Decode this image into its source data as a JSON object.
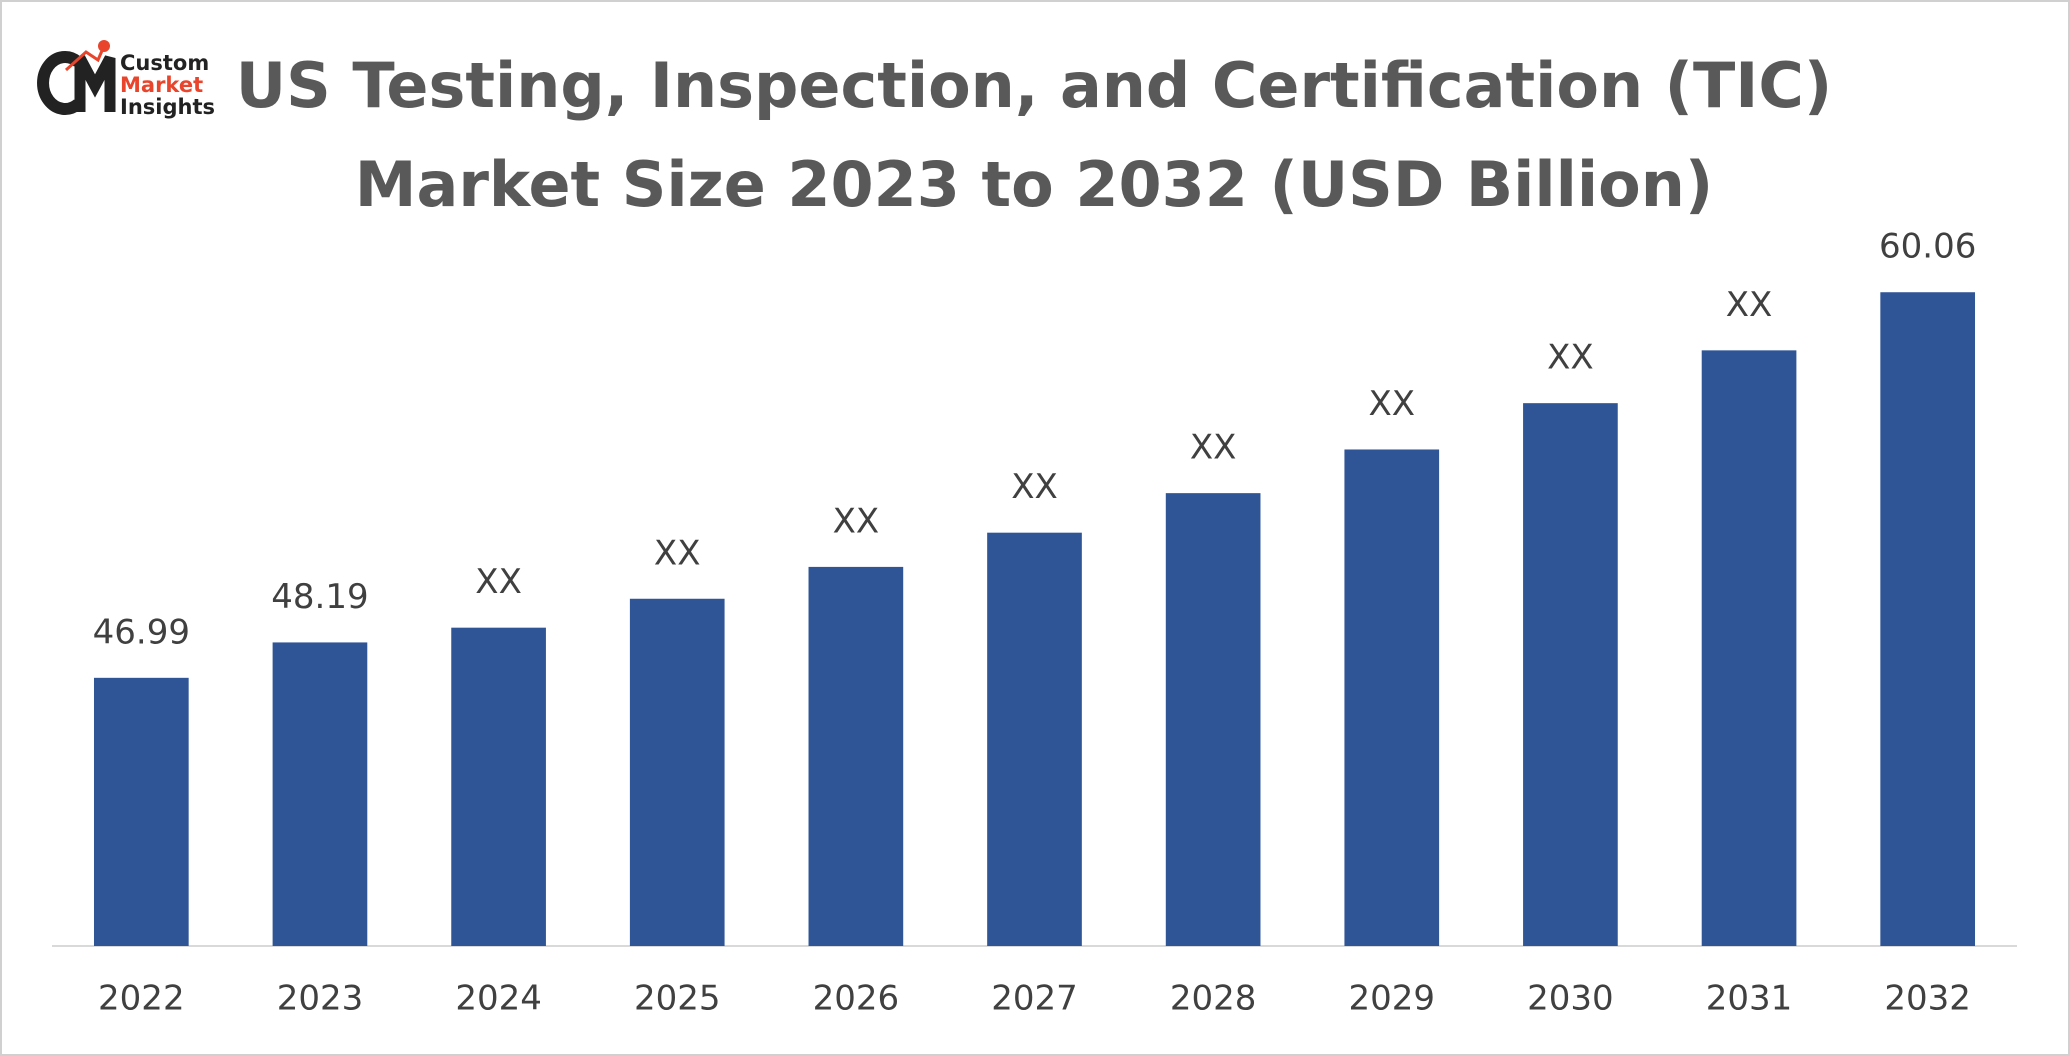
{
  "logo": {
    "lines": [
      "Custom",
      "Market",
      "Insights"
    ]
  },
  "chart_data": {
    "type": "bar",
    "title": [
      "US Testing, Inspection, and Certification (TIC)",
      "Market Size 2023 to 2032 (USD Billion)"
    ],
    "categories": [
      "2022",
      "2023",
      "2024",
      "2025",
      "2026",
      "2027",
      "2028",
      "2029",
      "2030",
      "2031",
      "2032"
    ],
    "values": [
      46.99,
      48.19,
      48.69,
      49.67,
      50.75,
      51.91,
      53.25,
      54.73,
      56.3,
      58.09,
      60.06
    ],
    "value_labels": [
      "46.99",
      "48.19",
      "XX",
      "XX",
      "XX",
      "XX",
      "XX",
      "XX",
      "XX",
      "XX",
      "60.06"
    ],
    "color": "#2f5597",
    "ylim": [
      37.9,
      62
    ]
  }
}
